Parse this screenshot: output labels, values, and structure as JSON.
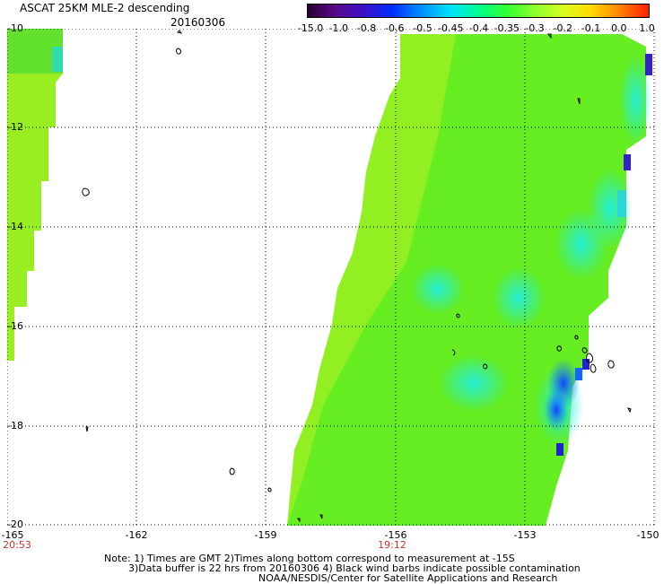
{
  "header": {
    "title": "ASCAT 25KM MLE-2 descending",
    "date": "20160306"
  },
  "colorbar": {
    "labels": [
      "-15.0",
      "-1.0",
      "-0.8",
      "-0.6",
      "-0.5",
      "-0.45",
      "-0.4",
      "-0.35",
      "-0.3",
      "-0.2",
      "-0.1",
      "0.0",
      "1.0"
    ],
    "colors": [
      "#2a0030",
      "#5a0a8a",
      "#3a10c8",
      "#0030ff",
      "#0090ff",
      "#00e0ff",
      "#00ff90",
      "#30ff30",
      "#90ff30",
      "#d8ff20",
      "#ffd800",
      "#ff8000",
      "#ff2000"
    ]
  },
  "map": {
    "lat_labels": [
      "-10",
      "-12",
      "-14",
      "-16",
      "-18",
      "-20"
    ],
    "lon_labels": [
      "-165",
      "-162",
      "-159",
      "-156",
      "-153",
      "-150"
    ],
    "times": [
      "20:53",
      "19:12"
    ],
    "colors": {
      "grid": "#000000",
      "swath_green": "#66ee22",
      "light_green": "#99ee22",
      "cyan": "#22eecc",
      "blue": "#1166ff",
      "dark_blue": "#2222cc",
      "time_label": "#c0392b"
    }
  },
  "notes": {
    "line1": "Note: 1) Times are GMT 2)Times along bottom correspond to measurement at -15S",
    "line2": "3)Data buffer is 22 hrs from 20160306 4) Black wind barbs indicate possible contamination",
    "line3": "NOAA/NESDIS/Center for Satellite Applications and Research"
  }
}
